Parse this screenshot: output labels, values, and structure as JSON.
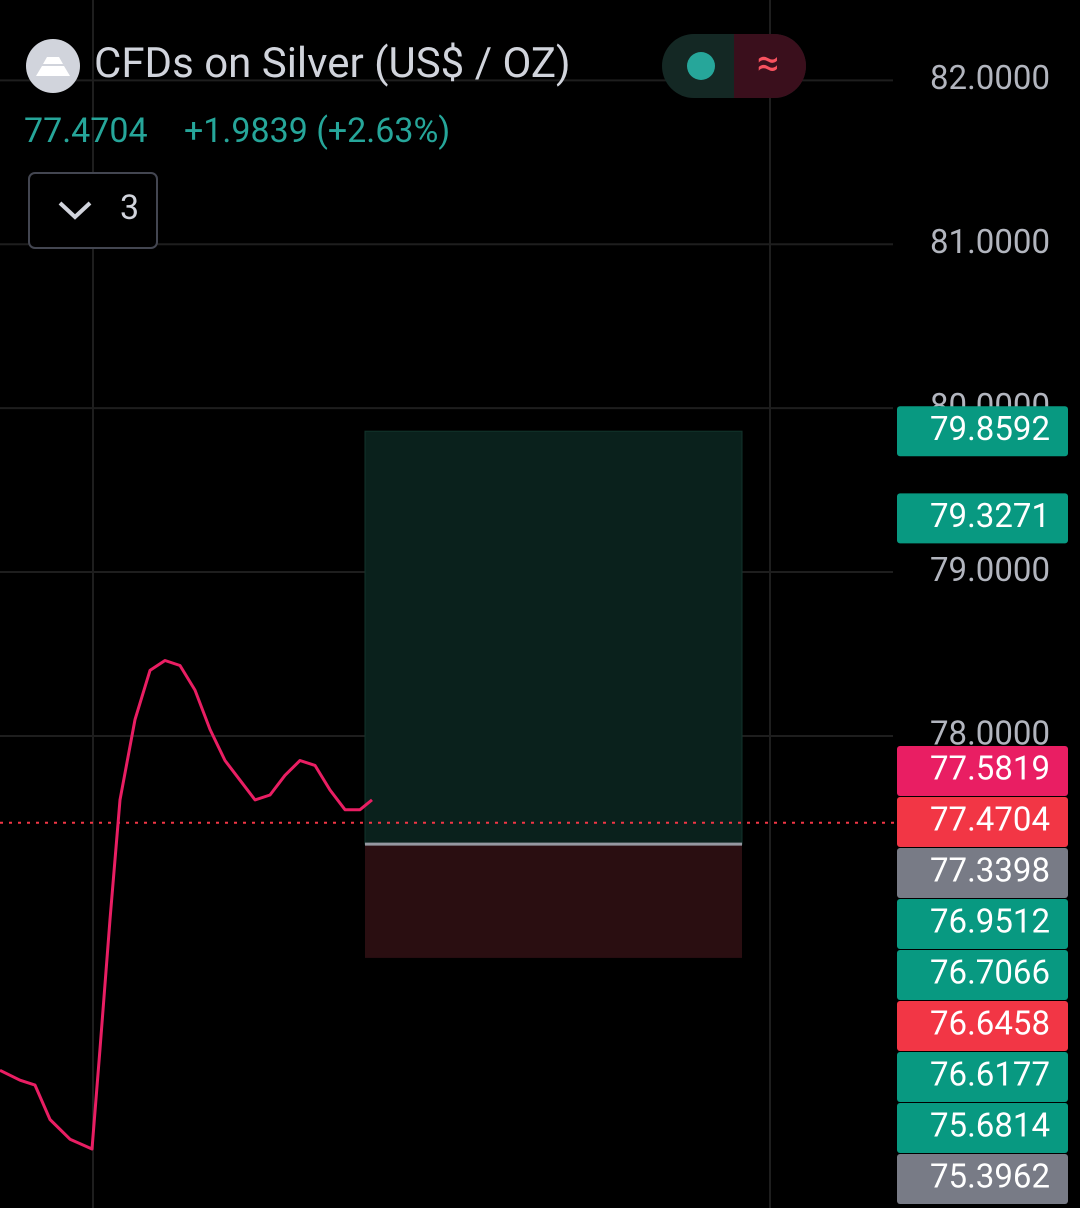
{
  "header": {
    "title": "CFDs on Silver (US$ / OZ)",
    "price": "77.4704",
    "change": "+1.9839 (+2.63%)",
    "indicator_count": "3",
    "status_icon": "≈"
  },
  "chart_data": {
    "type": "line",
    "color": "#e91e63",
    "x": [
      0,
      20,
      35,
      50,
      70,
      92,
      100,
      110,
      120,
      135,
      150,
      165,
      180,
      195,
      210,
      225,
      240,
      255,
      270,
      285,
      300,
      315,
      330,
      345,
      360,
      372
    ],
    "values": [
      75.96,
      75.9,
      75.87,
      75.66,
      75.54,
      75.48,
      76.09,
      76.88,
      77.61,
      78.1,
      78.4,
      78.46,
      78.43,
      78.28,
      78.04,
      77.85,
      77.73,
      77.61,
      77.64,
      77.76,
      77.85,
      77.82,
      77.67,
      77.55,
      77.55,
      77.61
    ],
    "xlim": [
      0,
      890
    ],
    "ylim": [
      75.12,
      82.49
    ],
    "yticks": [
      {
        "value": 82,
        "label": "82.0000"
      },
      {
        "value": 81,
        "label": "81.0000"
      },
      {
        "value": 80,
        "label": "80.0000"
      },
      {
        "value": 79,
        "label": "79.0000"
      },
      {
        "value": 78,
        "label": "78.0000"
      }
    ],
    "grid": true,
    "position": {
      "target": 79.8592,
      "entry": 77.3398,
      "stop": 76.6458
    },
    "last_price": 77.4704,
    "price_tags": [
      {
        "value": 79.8592,
        "label": "79.8592",
        "color": "#089981"
      },
      {
        "value": 79.3271,
        "label": "79.3271",
        "color": "#089981"
      },
      {
        "value": 77.5819,
        "label": "77.5819",
        "color": "#e91e63"
      },
      {
        "value": 77.4704,
        "label": "77.4704",
        "color": "#f23645"
      },
      {
        "value": 77.3398,
        "label": "77.3398",
        "color": "#787b86"
      },
      {
        "value": 76.9512,
        "label": "76.9512",
        "color": "#089981"
      },
      {
        "value": 76.7066,
        "label": "76.7066",
        "color": "#089981"
      },
      {
        "value": 76.6458,
        "label": "76.6458",
        "color": "#f23645"
      },
      {
        "value": 76.6177,
        "label": "76.6177",
        "color": "#089981"
      },
      {
        "value": 75.6814,
        "label": "75.6814",
        "color": "#089981"
      },
      {
        "value": 75.3962,
        "label": "75.3962",
        "color": "#787b86"
      }
    ]
  }
}
